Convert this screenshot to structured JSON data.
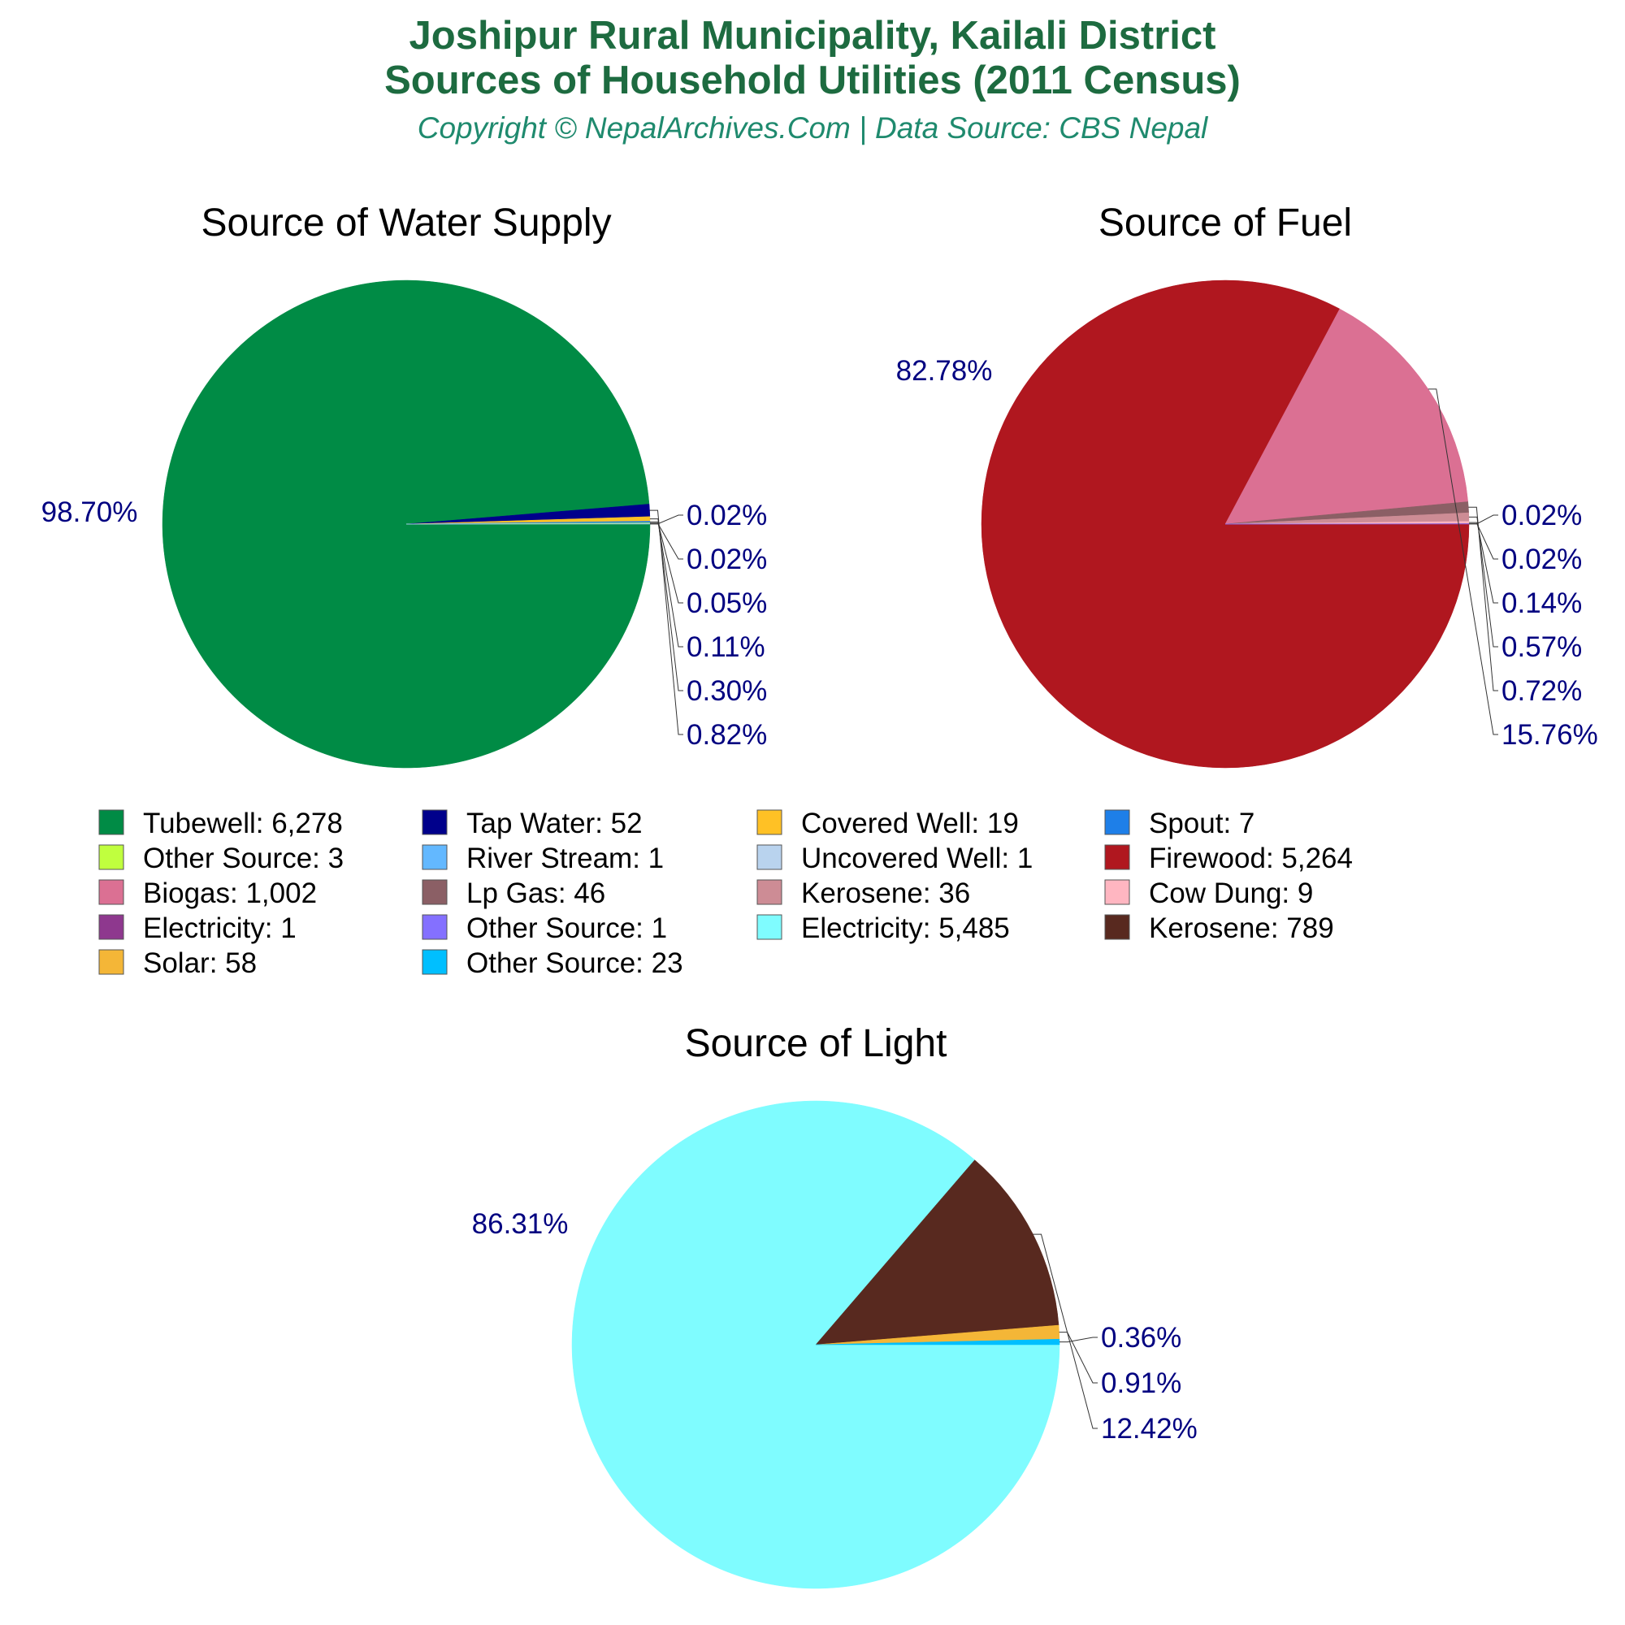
{
  "header": {
    "title_line1": "Joshipur Rural Municipality, Kailali District",
    "title_line2": "Sources of Household Utilities (2011 Census)",
    "subtitle": "Copyright © NepalArchives.Com | Data Source: CBS Nepal"
  },
  "chart_data": [
    {
      "type": "pie",
      "title": "Source of Water Supply",
      "slices": [
        {
          "label": "Tubewell",
          "value": 6278,
          "pct": "98.70%",
          "color": "#008b45"
        },
        {
          "label": "Tap Water",
          "value": 52,
          "pct": "0.82%",
          "color": "#00008b"
        },
        {
          "label": "Covered Well",
          "value": 19,
          "pct": "0.30%",
          "color": "#ffc125"
        },
        {
          "label": "Spout",
          "value": 7,
          "pct": "0.11%",
          "color": "#1e7fe8"
        },
        {
          "label": "Other Source",
          "value": 3,
          "pct": "0.05%",
          "color": "#c0ff3e"
        },
        {
          "label": "River Stream",
          "value": 1,
          "pct": "0.02%",
          "color": "#63b8ff"
        },
        {
          "label": "Uncovered Well",
          "value": 1,
          "pct": "0.02%",
          "color": "#b9d3ee"
        }
      ]
    },
    {
      "type": "pie",
      "title": "Source of Fuel",
      "slices": [
        {
          "label": "Firewood",
          "value": 5264,
          "pct": "82.78%",
          "color": "#b0171f"
        },
        {
          "label": "Biogas",
          "value": 1002,
          "pct": "15.76%",
          "color": "#db7093"
        },
        {
          "label": "Lp Gas",
          "value": 46,
          "pct": "0.72%",
          "color": "#8b5f65"
        },
        {
          "label": "Kerosene",
          "value": 36,
          "pct": "0.57%",
          "color": "#cd8c95"
        },
        {
          "label": "Cow Dung",
          "value": 9,
          "pct": "0.14%",
          "color": "#ffb6c1"
        },
        {
          "label": "Electricity",
          "value": 1,
          "pct": "0.02%",
          "color": "#8e388e"
        },
        {
          "label": "Other Source",
          "value": 1,
          "pct": "0.02%",
          "color": "#8470ff"
        }
      ]
    },
    {
      "type": "pie",
      "title": "Source of Light",
      "slices": [
        {
          "label": "Electricity",
          "value": 5485,
          "pct": "86.31%",
          "color": "#7ffcff"
        },
        {
          "label": "Kerosene",
          "value": 789,
          "pct": "12.42%",
          "color": "#58291f"
        },
        {
          "label": "Solar",
          "value": 58,
          "pct": "0.91%",
          "color": "#f4b637"
        },
        {
          "label": "Other Source",
          "value": 23,
          "pct": "0.36%",
          "color": "#00bfff"
        }
      ]
    }
  ],
  "legend": [
    {
      "label": "Tubewell: 6,278",
      "color": "#008b45"
    },
    {
      "label": "Tap Water: 52",
      "color": "#00008b"
    },
    {
      "label": "Covered Well: 19",
      "color": "#ffc125"
    },
    {
      "label": "Spout: 7",
      "color": "#1e7fe8"
    },
    {
      "label": "Other Source: 3",
      "color": "#c0ff3e"
    },
    {
      "label": "River Stream: 1",
      "color": "#63b8ff"
    },
    {
      "label": "Uncovered Well: 1",
      "color": "#b9d3ee"
    },
    {
      "label": "Firewood: 5,264",
      "color": "#b0171f"
    },
    {
      "label": "Biogas: 1,002",
      "color": "#db7093"
    },
    {
      "label": "Lp Gas: 46",
      "color": "#8b5f65"
    },
    {
      "label": "Kerosene: 36",
      "color": "#cd8c95"
    },
    {
      "label": "Cow Dung: 9",
      "color": "#ffb6c1"
    },
    {
      "label": "Electricity: 1",
      "color": "#8e388e"
    },
    {
      "label": "Other Source: 1",
      "color": "#8470ff"
    },
    {
      "label": "Electricity: 5,485",
      "color": "#7ffcff"
    },
    {
      "label": "Kerosene: 789",
      "color": "#58291f"
    },
    {
      "label": "Solar: 58",
      "color": "#f4b637"
    },
    {
      "label": "Other Source: 23",
      "color": "#00bfff"
    }
  ]
}
